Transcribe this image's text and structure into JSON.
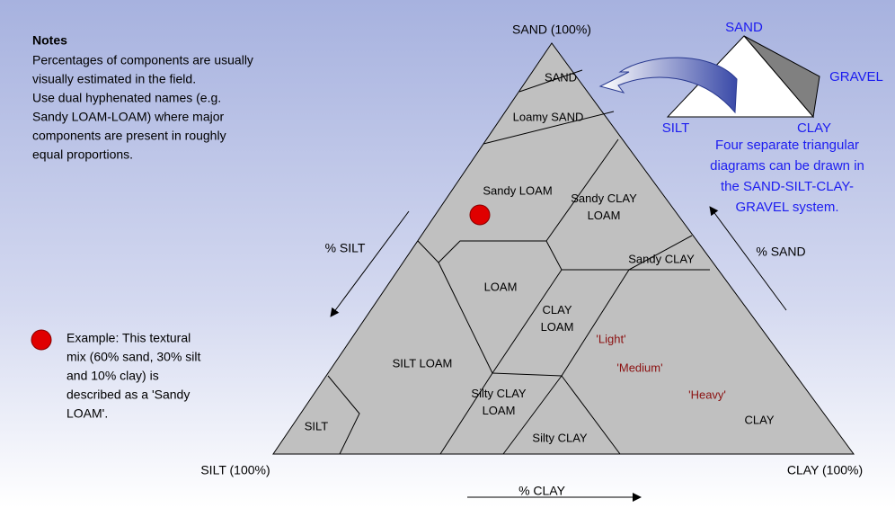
{
  "notes": {
    "title": "Notes",
    "lines": [
      "Percentages of components are usually",
      "visually estimated in the field.",
      "Use dual hyphenated names (e.g.",
      "Sandy LOAM-LOAM) where  major",
      "components are present in roughly",
      "equal proportions."
    ]
  },
  "example": {
    "lines": [
      "Example: This textural",
      "mix (60% sand, 30% silt",
      "and 10% clay)  is",
      "described as a 'Sandy",
      "LOAM'."
    ]
  },
  "corners": {
    "sand": "SAND (100%)",
    "silt": "SILT (100%)",
    "clay": "CLAY (100%)"
  },
  "axes": {
    "silt": "% SILT",
    "sand": "% SAND",
    "clay": "% CLAY"
  },
  "regions": [
    {
      "lines": [
        "SAND"
      ]
    },
    {
      "lines": [
        "Loamy SAND"
      ]
    },
    {
      "lines": [
        "Sandy LOAM"
      ]
    },
    {
      "lines": [
        "Sandy CLAY",
        "LOAM"
      ]
    },
    {
      "lines": [
        "Sandy CLAY"
      ]
    },
    {
      "lines": [
        "LOAM"
      ]
    },
    {
      "lines": [
        "CLAY",
        "LOAM"
      ]
    },
    {
      "lines": [
        "SILT LOAM"
      ]
    },
    {
      "lines": [
        "Silty CLAY",
        "LOAM"
      ]
    },
    {
      "lines": [
        "Silty CLAY"
      ]
    },
    {
      "lines": [
        "SILT"
      ]
    },
    {
      "lines": [
        "CLAY"
      ]
    }
  ],
  "grades": [
    "'Light'",
    "'Medium'",
    "'Heavy'"
  ],
  "inset": {
    "sand": "SAND",
    "gravel": "GRAVEL",
    "silt": "SILT",
    "clay": "CLAY",
    "caption": [
      "Four separate triangular",
      "diagrams can be drawn in",
      "the SAND-SILT-CLAY-",
      "GRAVEL system."
    ]
  }
}
